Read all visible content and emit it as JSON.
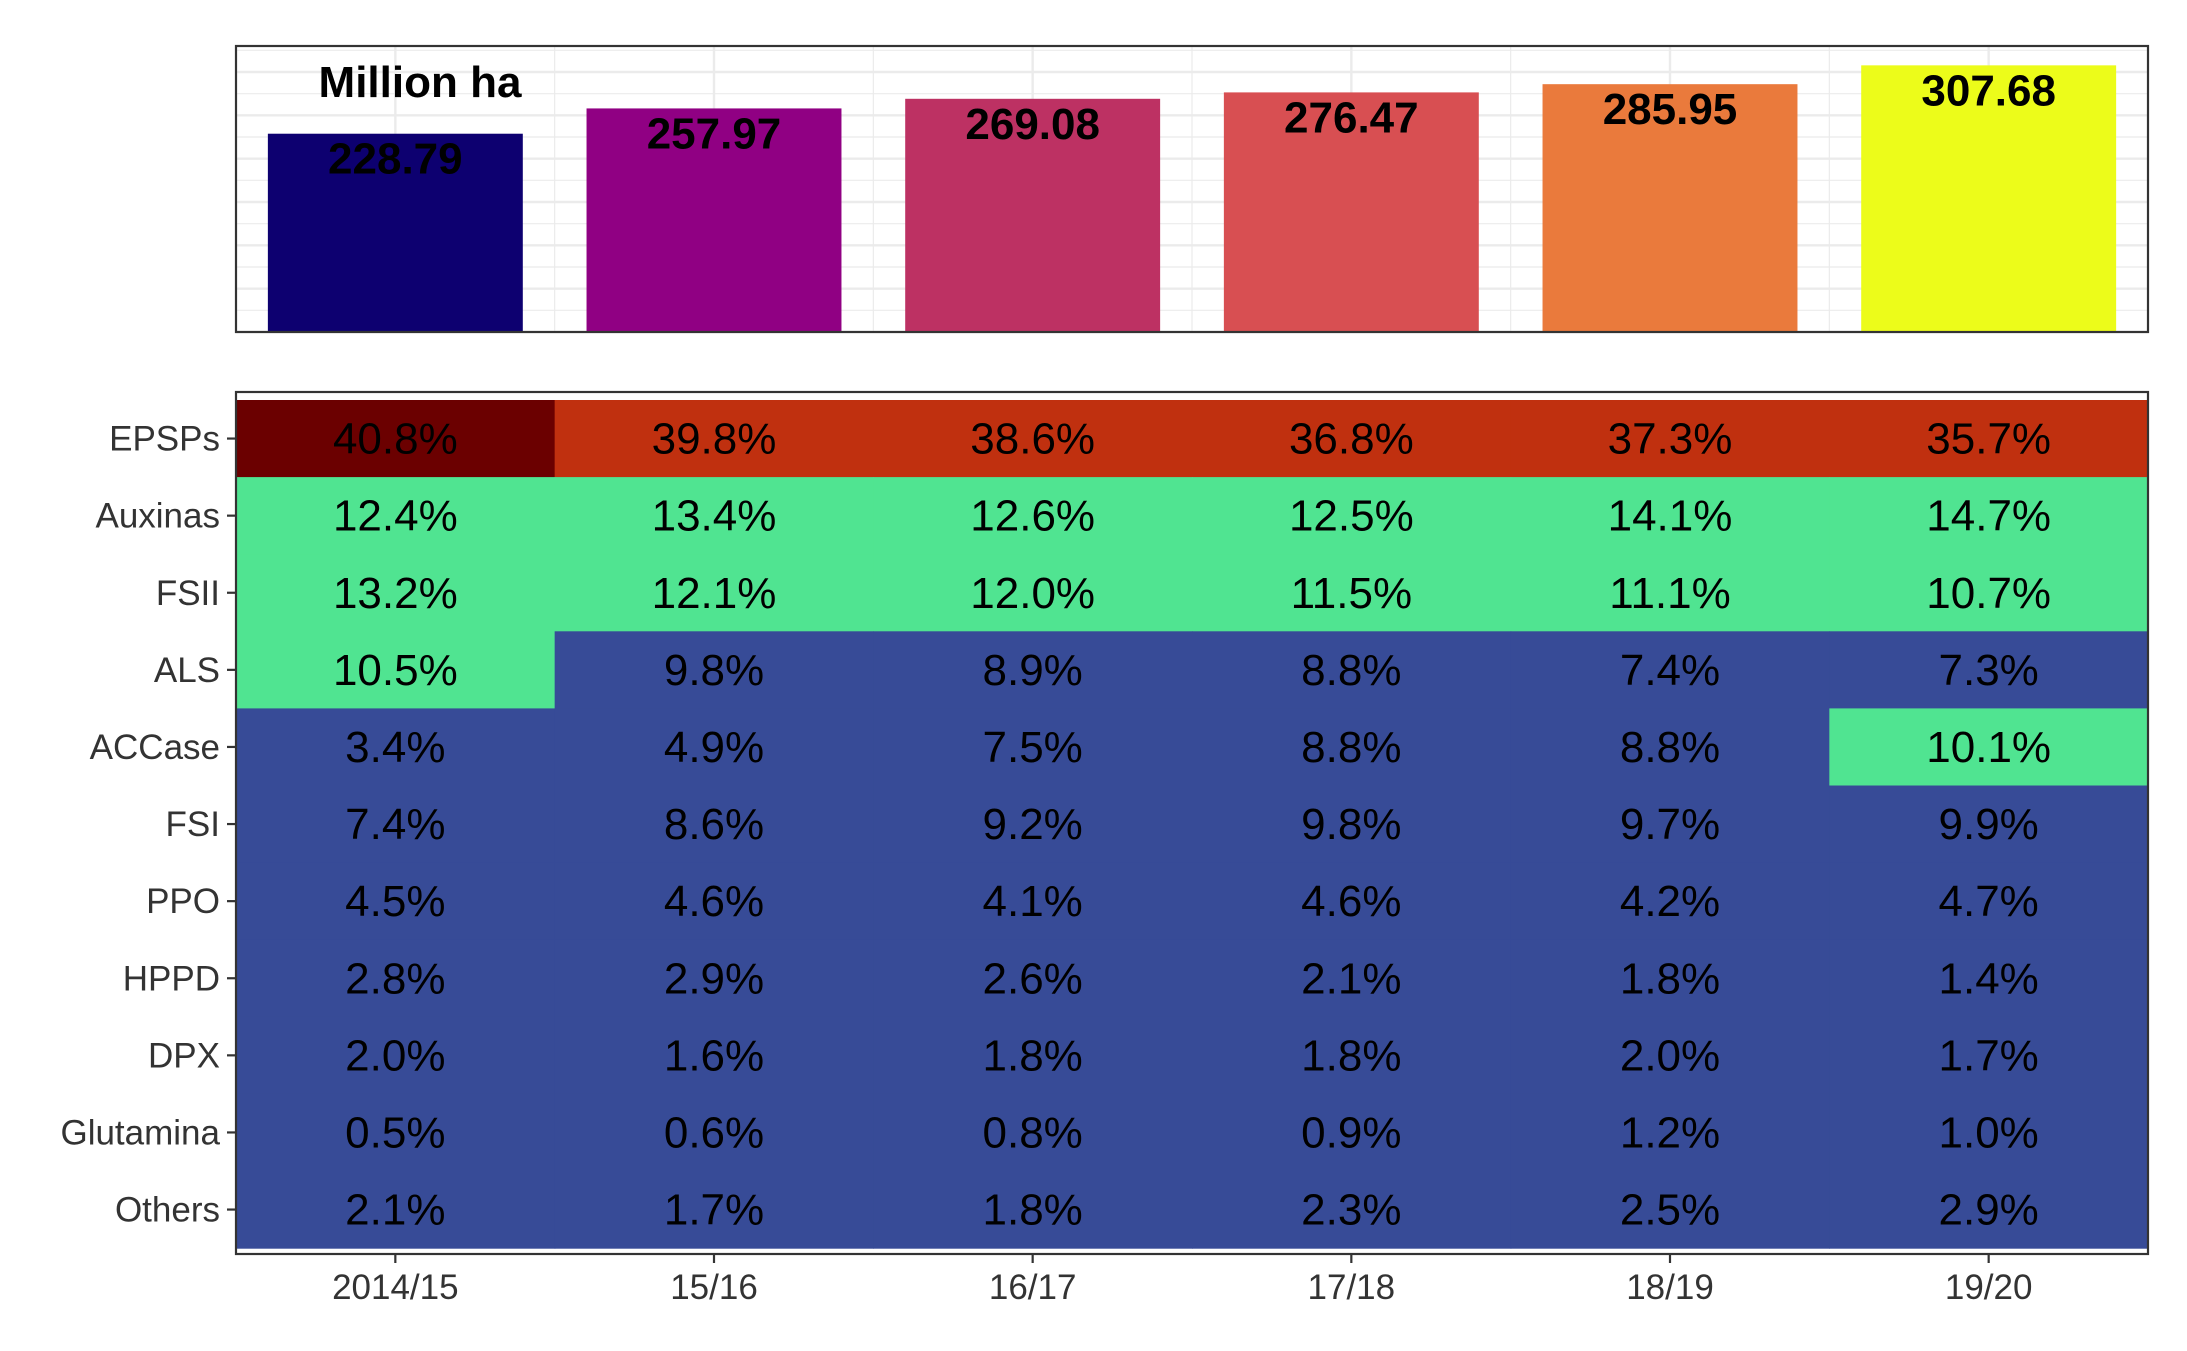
{
  "chart_data": [
    {
      "type": "bar",
      "title": "",
      "annotation": "Million ha",
      "categories": [
        "2014/15",
        "15/16",
        "16/17",
        "17/18",
        "18/19",
        "19/20"
      ],
      "values": [
        228.79,
        257.97,
        269.08,
        276.47,
        285.95,
        307.68
      ],
      "value_labels": [
        "228.79",
        "257.97",
        "269.08",
        "276.47",
        "285.95",
        "307.68"
      ],
      "colors": [
        "#0d0070",
        "#900083",
        "#bd3163",
        "#d84f52",
        "#ea7a3c",
        "#ecfc1a"
      ],
      "xlabel": "",
      "ylabel": "",
      "ylim": [
        0,
        330
      ],
      "grid": true,
      "axes_text": false
    },
    {
      "type": "heatmap",
      "xlabel": "",
      "ylabel": "",
      "x": [
        "2014/15",
        "15/16",
        "16/17",
        "17/18",
        "18/19",
        "19/20"
      ],
      "y": [
        "EPSPs",
        "Auxinas",
        "FSII",
        "ALS",
        "ACCase",
        "FSI",
        "PPO",
        "HPPD",
        "DPX",
        "Glutamina",
        "Others"
      ],
      "labels": [
        [
          "40.8%",
          "39.8%",
          "38.6%",
          "36.8%",
          "37.3%",
          "35.7%"
        ],
        [
          "12.4%",
          "13.4%",
          "12.6%",
          "12.5%",
          "14.1%",
          "14.7%"
        ],
        [
          "13.2%",
          "12.1%",
          "12.0%",
          "11.5%",
          "11.1%",
          "10.7%"
        ],
        [
          "10.5%",
          "9.8%",
          "8.9%",
          "8.8%",
          "7.4%",
          "7.3%"
        ],
        [
          "3.4%",
          "4.9%",
          "7.5%",
          "8.8%",
          "8.8%",
          "10.1%"
        ],
        [
          "7.4%",
          "8.6%",
          "9.2%",
          "9.8%",
          "9.7%",
          "9.9%"
        ],
        [
          "4.5%",
          "4.6%",
          "4.1%",
          "4.6%",
          "4.2%",
          "4.7%"
        ],
        [
          "2.8%",
          "2.9%",
          "2.6%",
          "2.1%",
          "1.8%",
          "1.4%"
        ],
        [
          "2.0%",
          "1.6%",
          "1.8%",
          "1.8%",
          "2.0%",
          "1.7%"
        ],
        [
          "0.5%",
          "0.6%",
          "0.8%",
          "0.9%",
          "1.2%",
          "1.0%"
        ],
        [
          "2.1%",
          "1.7%",
          "1.8%",
          "2.3%",
          "2.5%",
          "2.9%"
        ]
      ],
      "colors": [
        [
          "#6b0000",
          "#c0300f",
          "#c0300f",
          "#c0300f",
          "#c0300f",
          "#c0300f"
        ],
        [
          "#50e491",
          "#50e491",
          "#50e491",
          "#50e491",
          "#50e491",
          "#50e491"
        ],
        [
          "#50e491",
          "#50e491",
          "#50e491",
          "#50e491",
          "#50e491",
          "#50e491"
        ],
        [
          "#50e491",
          "#374b97",
          "#374b97",
          "#374b97",
          "#374b97",
          "#374b97"
        ],
        [
          "#374b97",
          "#374b97",
          "#374b97",
          "#374b97",
          "#374b97",
          "#50e491"
        ],
        [
          "#374b97",
          "#374b97",
          "#374b97",
          "#374b97",
          "#374b97",
          "#374b97"
        ],
        [
          "#374b97",
          "#374b97",
          "#374b97",
          "#374b97",
          "#374b97",
          "#374b97"
        ],
        [
          "#374b97",
          "#374b97",
          "#374b97",
          "#374b97",
          "#374b97",
          "#374b97"
        ],
        [
          "#374b97",
          "#374b97",
          "#374b97",
          "#374b97",
          "#374b97",
          "#374b97"
        ],
        [
          "#374b97",
          "#374b97",
          "#374b97",
          "#374b97",
          "#374b97",
          "#374b97"
        ],
        [
          "#374b97",
          "#374b97",
          "#374b97",
          "#374b97",
          "#374b97",
          "#374b97"
        ]
      ],
      "grid": false,
      "legend": "none"
    }
  ]
}
